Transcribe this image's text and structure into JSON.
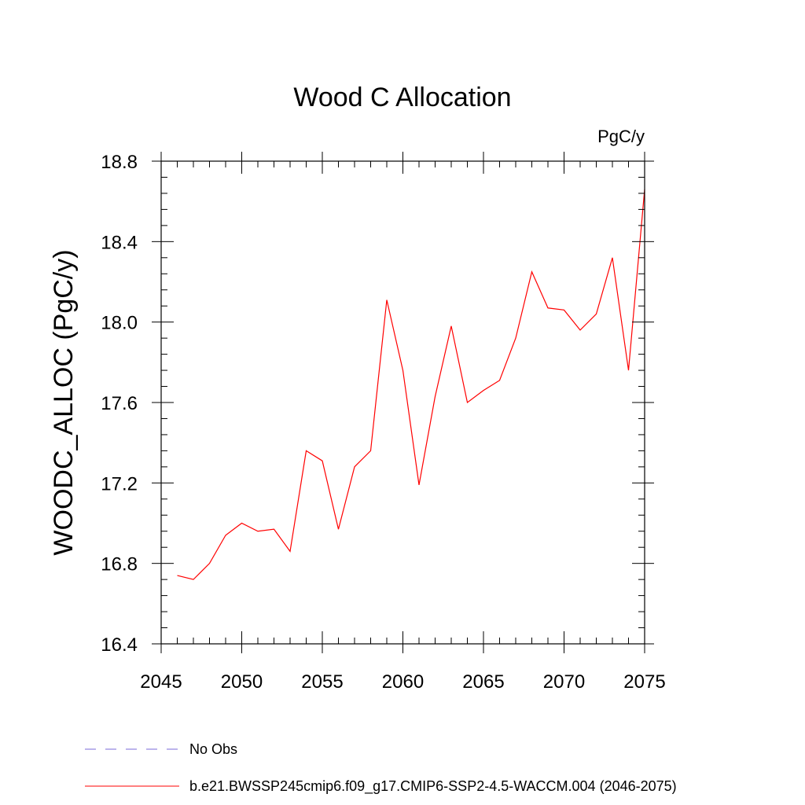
{
  "chart_data": {
    "type": "line",
    "title": "Wood C Allocation",
    "units_label": "PgC/y",
    "ylabel": "WOODC_ALLOC  (PgC/y)",
    "xlabel": "",
    "xlim": [
      2045,
      2075
    ],
    "ylim": [
      16.4,
      18.8
    ],
    "x_ticks": [
      "2045",
      "2050",
      "2055",
      "2060",
      "2065",
      "2070",
      "2075"
    ],
    "y_ticks": [
      "16.4",
      "16.8",
      "17.2",
      "17.6",
      "18.0",
      "18.4",
      "18.8"
    ],
    "x_major": [
      2045,
      2050,
      2055,
      2060,
      2065,
      2070,
      2075
    ],
    "y_major": [
      16.4,
      16.8,
      17.2,
      17.6,
      18.0,
      18.4,
      18.8
    ],
    "grid": false,
    "legend_placement": "bottom",
    "series": [
      {
        "name": "b.e21.BWSSP245cmip6.f09_g17.CMIP6-SSP2-4.5-WACCM.004 (2046-2075)",
        "color": "#ff0000",
        "x": [
          2046,
          2047,
          2048,
          2049,
          2050,
          2051,
          2052,
          2053,
          2054,
          2055,
          2056,
          2057,
          2058,
          2059,
          2060,
          2061,
          2062,
          2063,
          2064,
          2065,
          2066,
          2067,
          2068,
          2069,
          2070,
          2071,
          2072,
          2073,
          2074,
          2075
        ],
        "values": [
          16.74,
          16.72,
          16.8,
          16.94,
          17.0,
          16.96,
          16.97,
          16.86,
          17.36,
          17.31,
          16.97,
          17.28,
          17.36,
          18.11,
          17.76,
          17.19,
          17.63,
          17.98,
          17.6,
          17.66,
          17.71,
          17.92,
          18.25,
          18.07,
          18.06,
          17.96,
          18.04,
          18.32,
          17.76,
          18.66
        ]
      }
    ],
    "legend": [
      {
        "label": "No Obs",
        "color": "#7a6ad8",
        "style": "dashed"
      },
      {
        "label": "b.e21.BWSSP245cmip6.f09_g17.CMIP6-SSP2-4.5-WACCM.004 (2046-2075)",
        "color": "#ff0000",
        "style": "solid"
      }
    ]
  }
}
